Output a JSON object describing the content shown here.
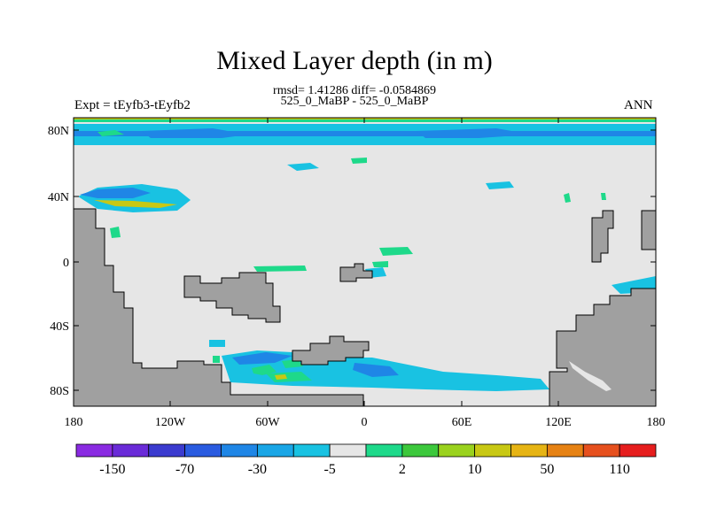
{
  "title": "Mixed Layer depth (in m)",
  "stats_line": "rmsd= 1.41286 diff= -0.0584869",
  "case_line": "525_0_MaBP - 525_0_MaBP",
  "left_label": "Expt = tEyfb3-tEyfb2",
  "right_label": "ANN",
  "lat_labels": [
    "80N",
    "40N",
    "0",
    "40S",
    "80S"
  ],
  "lon_labels": [
    "180",
    "120W",
    "60W",
    "0",
    "60E",
    "120E",
    "180"
  ],
  "colorbar": {
    "colors": [
      "#8a2be2",
      "#6a2bd8",
      "#3b3bcf",
      "#2a5be0",
      "#1f86e6",
      "#1aa6e6",
      "#19c2e2",
      "#e6e6e6",
      "#1ed98a",
      "#3cc83c",
      "#9ad21e",
      "#c8c814",
      "#e6b414",
      "#e68214",
      "#e6501e",
      "#e61e1e"
    ],
    "tick_labels": [
      "-150",
      "-70",
      "-30",
      "-5",
      "2",
      "10",
      "50",
      "110"
    ]
  },
  "colors": {
    "ocean": "#e6e6e6",
    "land": "#a0a0a0",
    "cyan_band": "#19c2e2",
    "blue_band": "#1f86e6",
    "green_band": "#1ed98a",
    "yellow_band": "#c8c814"
  }
}
